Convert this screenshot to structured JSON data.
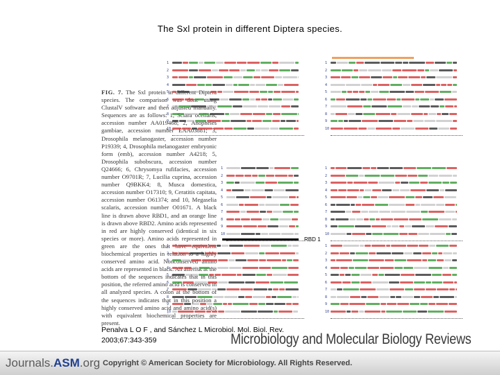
{
  "title": "The Sxl protein in different Diptera species.",
  "caption": {
    "lead": "FIG. 7.",
    "text": "The Sxl protein in different Diptera species. The comparison was done using ClustalV software and then adjusted manually. Sequences are as follows: 1, Sciara ocellaris, accession number AA019468; 2, Anopheles gambiae, accession number EAA03881; 3, Drosophila melanogaster, accession number P19339; 4, Drosophila melanogaster embryonic form (emb), accession number A4218; 5, Drosophila subobscura, accession number Q24666; 6, Chrysomya rufifacies, accession number O9701R; 7, Lucilia cuprina, accession number Q9BKK4; 8, Musca domestica, accession number O17310; 9, Ceratitis capitata, accession number O61374; and 10, Megaselia scalaris, accession number O01671. A black line is drawn above RBD1, and an orange line is drawn above RBD2. Amino acids represented in red are highly conserved (identical in six species or more). Amino acids represented in green are the ones that have equivalent biochemical properties in relation to a highly conserved amino acid. Nonconserved amino acids are represented in black. An asterisk at the bottom of the sequences indicates that in this position, the referred amino acid is conserved in all analyzed species. A colon at the bottom of the sequences indicates that in this position a highly conserved amino acid and amino acid(s) with equivalent biochemical properties are present."
  },
  "rbd1_label": "RBD 1",
  "citation": {
    "line1": "Penalva L O F , and Sánchez L Microbiol. Mol. Biol. Rev.",
    "line2": "2003;67:343-359"
  },
  "journal_title": "Microbiology and Molecular Biology Reviews",
  "footer": {
    "logo_prefix": "Journals.",
    "logo_brand": "ASM",
    "logo_suffix": ".org",
    "copyright": "Copyright © American Society for Microbiology. All Rights Reserved."
  },
  "alignment": {
    "row_labels": [
      "1",
      "2",
      "3",
      "4",
      "5",
      "6",
      "7",
      "8",
      "9",
      "10"
    ],
    "colors": {
      "conserved": "#d23b3b",
      "equivalent": "#3a9a3a",
      "nonconserved": "#333333",
      "index": "#2a3a8a"
    }
  }
}
